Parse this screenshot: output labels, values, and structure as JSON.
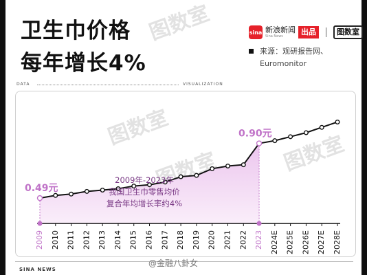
{
  "title": {
    "line1": "卫生巾价格",
    "line2": "每年增长4%"
  },
  "brand": {
    "logo_text": "sina",
    "name": "新浪新闻",
    "sub": "Sina News",
    "badge": "出品",
    "partner": "图数室"
  },
  "source": {
    "line1": "来源：观研报告网、",
    "line2": "Euromonitor"
  },
  "header": {
    "left": "DATA",
    "right": "VISUALIZATION"
  },
  "footer": {
    "left": "SINA NEWS",
    "weibo": "@金融八卦女"
  },
  "colors": {
    "line": "#111111",
    "accent": "#c073c8",
    "fill_top": "#ecc6ee",
    "fill_bottom": "#faeefa",
    "watermark": "#e2e2e2"
  },
  "chart_data": {
    "type": "line",
    "title": "卫生巾价格 每年增长4%",
    "xlabel": "",
    "ylabel": "",
    "categories": [
      "2009",
      "2010",
      "2011",
      "2012",
      "2013",
      "2014",
      "2015",
      "2016",
      "2017",
      "2018",
      "2019",
      "2020",
      "2021",
      "2022",
      "2023",
      "2024E",
      "2025E",
      "2026E",
      "2027E",
      "2028E"
    ],
    "values": [
      0.49,
      0.51,
      0.52,
      0.54,
      0.55,
      0.56,
      0.58,
      0.59,
      0.61,
      0.65,
      0.66,
      0.71,
      0.73,
      0.74,
      0.9,
      0.92,
      0.95,
      0.98,
      1.02,
      1.06
    ],
    "ylim": [
      0.3,
      1.15
    ],
    "grid": false,
    "highlight": {
      "start": {
        "category": "2009",
        "label": "0.49元"
      },
      "end": {
        "category": "2023",
        "label": "0.90元"
      }
    },
    "annotation": [
      "2009年-2023年",
      "我国卫生巾零售均价",
      "复合年均增长率约4%"
    ]
  }
}
